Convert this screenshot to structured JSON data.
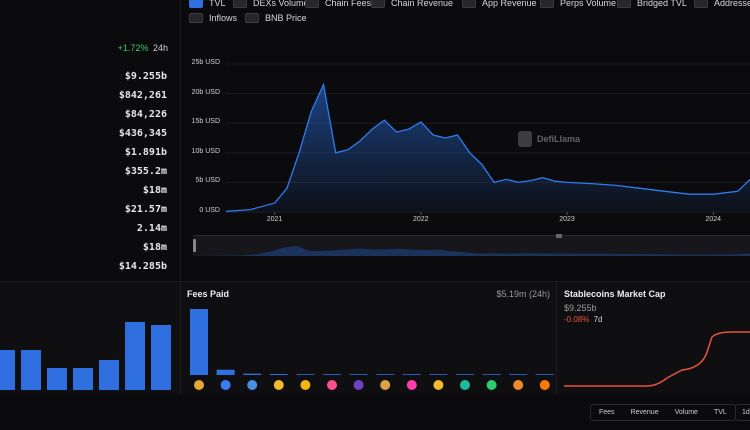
{
  "legend": {
    "row1": [
      {
        "label": "TVL",
        "checked": true
      },
      {
        "label": "DEXs Volume",
        "checked": false
      },
      {
        "label": "Chain Fees",
        "checked": false
      },
      {
        "label": "Chain Revenue",
        "checked": false
      },
      {
        "label": "App Revenue",
        "checked": false
      },
      {
        "label": "Perps Volume",
        "checked": false
      },
      {
        "label": "Bridged TVL",
        "checked": false
      },
      {
        "label": "Addresses",
        "checked": false
      }
    ],
    "row2": [
      {
        "label": "Inflows",
        "checked": false
      },
      {
        "label": "BNB Price",
        "checked": false
      }
    ]
  },
  "stats": {
    "change": "+1.72%",
    "change_period": "24h",
    "values": [
      "$9.255b",
      "$842,261",
      "$84,226",
      "$436,345",
      "$1.891b",
      "$355.2m",
      "$18m",
      "$21.57m",
      "2.14m",
      "$18m",
      "$14.285b"
    ]
  },
  "main_chart": {
    "watermark": "DefiLlama",
    "chart_data": {
      "type": "area",
      "x_ticks": [
        "2021",
        "2022",
        "2023",
        "2024"
      ],
      "y_ticks": [
        "25b USD",
        "20b USD",
        "15b USD",
        "10b USD",
        "5b USD",
        "0 USD"
      ],
      "ylim": [
        0,
        25
      ],
      "series": [
        {
          "x": [
            "2020-09",
            "2020-11",
            "2021-01",
            "2021-02",
            "2021-03",
            "2021-04",
            "2021-05",
            "2021-06",
            "2021-07",
            "2021-08",
            "2021-09",
            "2021-10",
            "2021-11",
            "2021-12",
            "2022-01",
            "2022-02",
            "2022-03",
            "2022-04",
            "2022-05",
            "2022-06",
            "2022-07",
            "2022-08",
            "2022-09",
            "2022-10",
            "2022-11",
            "2022-12",
            "2023-01",
            "2023-03",
            "2023-05",
            "2023-07",
            "2023-09",
            "2023-11",
            "2024-01",
            "2024-03",
            "2024-04"
          ],
          "values": [
            0.1,
            0.4,
            1.5,
            4,
            10,
            17,
            21.5,
            10,
            10.5,
            12,
            14,
            15.5,
            13.5,
            14,
            15.2,
            13,
            12.5,
            13,
            10,
            8,
            5,
            5.5,
            5,
            5.3,
            5.8,
            5.2,
            5,
            4.8,
            4.5,
            4,
            3.5,
            3,
            3,
            3.5,
            5.5
          ]
        }
      ]
    }
  },
  "bottom_left": {
    "chart_data": {
      "type": "bar",
      "values": [
        40,
        40,
        22,
        22,
        30,
        68,
        65
      ]
    }
  },
  "fees": {
    "title": "Fees Paid",
    "total": "$5.19m (24h)",
    "chart_data": {
      "type": "bar",
      "values": [
        100,
        8,
        2,
        1.5,
        1.2,
        1,
        0.8,
        0.7,
        0.6,
        0.5,
        0.5,
        0.4,
        0.4,
        0.3,
        0.3
      ]
    },
    "icon_colors": [
      "#e8a838",
      "#3b7cf5",
      "#4a90e2",
      "#f3ba2f",
      "#f0b90b",
      "#ff4f8b",
      "#6f42c1",
      "#d9a441",
      "#ff3cac",
      "#f3ba2f",
      "#1bbc9b",
      "#2ecc71",
      "#f08a24",
      "#ff7a00",
      "#8e7cff"
    ]
  },
  "stablecoins": {
    "title": "Stablecoins Market Cap",
    "value": "$9.255b",
    "change": "-0.08%",
    "change_period": "7d",
    "color": "#e8523f"
  },
  "bottom_tabs": [
    "Fees",
    "Revenue",
    "Volume",
    "TVL"
  ],
  "period_button": "1d"
}
